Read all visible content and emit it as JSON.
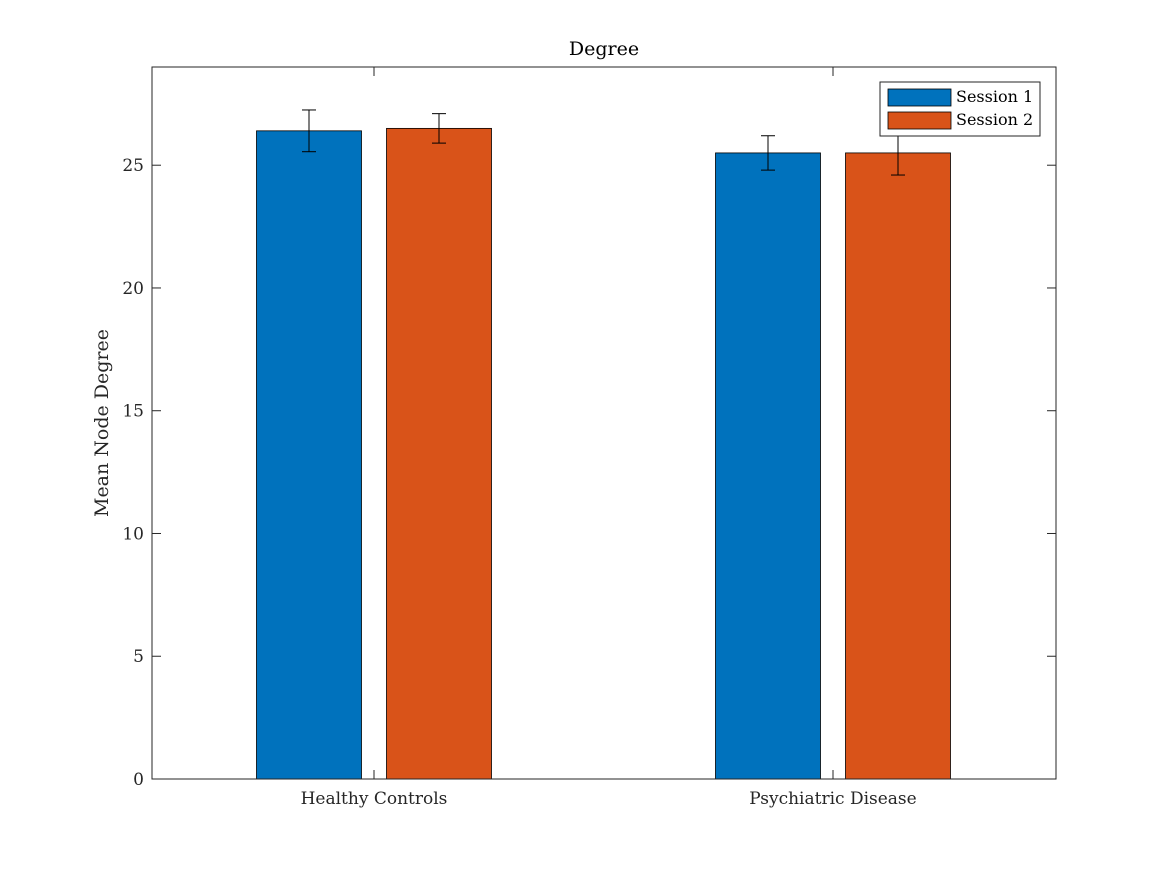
{
  "chart_data": {
    "type": "bar",
    "title": "Degree",
    "xlabel": "",
    "ylabel": "Mean Node Degree",
    "categories": [
      "Healthy Controls",
      "Psychiatric Disease"
    ],
    "ylim": [
      0,
      29
    ],
    "yticks": [
      0,
      5,
      10,
      15,
      20,
      25
    ],
    "grid": false,
    "legend_position": "top-right",
    "series": [
      {
        "name": "Session 1",
        "color": "#0072BD",
        "values": [
          26.4,
          25.5
        ],
        "errors": [
          0.85,
          0.7
        ]
      },
      {
        "name": "Session 2",
        "color": "#D95319",
        "values": [
          26.5,
          25.5
        ],
        "errors": [
          0.6,
          0.9
        ]
      }
    ]
  }
}
